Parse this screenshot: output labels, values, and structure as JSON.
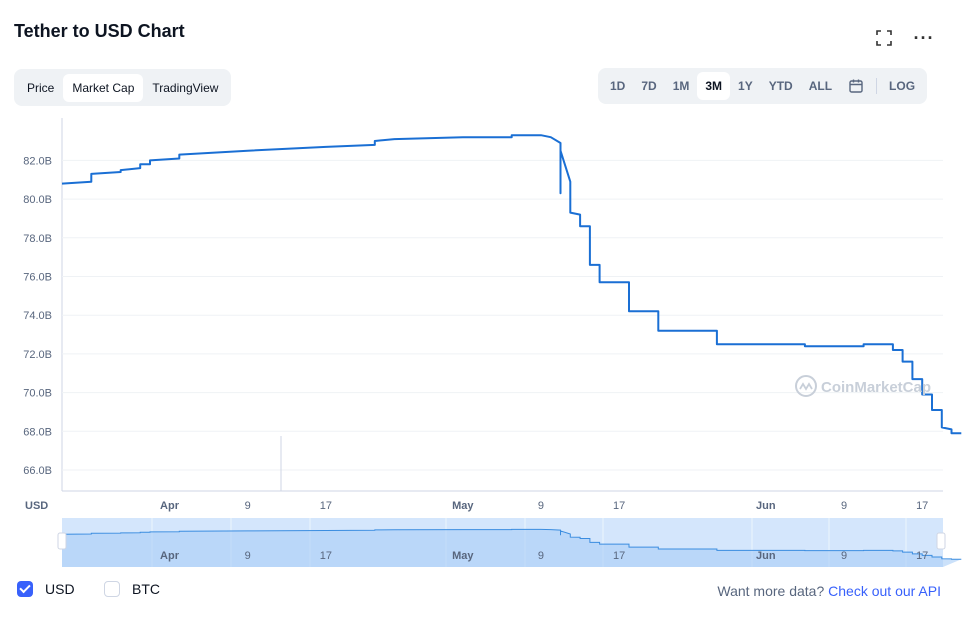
{
  "header": {
    "title": "Tether to USD Chart",
    "fullscreen_icon": "fullscreen-icon",
    "more_icon": "more-horizontal-icon",
    "more_glyph": "···"
  },
  "view_tabs": [
    {
      "label": "Price",
      "active": false
    },
    {
      "label": "Market Cap",
      "active": true
    },
    {
      "label": "TradingView",
      "active": false
    }
  ],
  "range_tabs": [
    {
      "label": "1D",
      "active": false
    },
    {
      "label": "7D",
      "active": false
    },
    {
      "label": "1M",
      "active": false
    },
    {
      "label": "3M",
      "active": true
    },
    {
      "label": "1Y",
      "active": false
    },
    {
      "label": "YTD",
      "active": false
    },
    {
      "label": "ALL",
      "active": false
    }
  ],
  "calendar_icon": "calendar-icon",
  "log_label": "LOG",
  "legend": [
    {
      "label": "USD",
      "checked": true
    },
    {
      "label": "BTC",
      "checked": false
    }
  ],
  "footer": {
    "prefix": "Want more data?",
    "link": "Check out our API"
  },
  "watermark": "CoinMarketCap",
  "colors": {
    "line": "#1a6fd4",
    "accent": "#3861fb",
    "navigator_fill": "#d4e6fc"
  },
  "chart_data": {
    "type": "line",
    "ylabel": "USD",
    "ylim": [
      65,
      84
    ],
    "y_ticks": [
      {
        "value": 66,
        "label": "66.0B"
      },
      {
        "value": 68,
        "label": "68.0B"
      },
      {
        "value": 70,
        "label": "70.0B"
      },
      {
        "value": 72,
        "label": "72.0B"
      },
      {
        "value": 74,
        "label": "74.0B"
      },
      {
        "value": 76,
        "label": "76.0B"
      },
      {
        "value": 78,
        "label": "78.0B"
      },
      {
        "value": 80,
        "label": "80.0B"
      },
      {
        "value": 82,
        "label": "82.0B"
      }
    ],
    "xlim": [
      "2022-03-21",
      "2022-06-20"
    ],
    "x_ticks": [
      {
        "date": "2022-04-01",
        "label": "Apr",
        "bold": true
      },
      {
        "date": "2022-04-09",
        "label": "9",
        "bold": false
      },
      {
        "date": "2022-04-17",
        "label": "17",
        "bold": false
      },
      {
        "date": "2022-05-01",
        "label": "May",
        "bold": true
      },
      {
        "date": "2022-05-09",
        "label": "9",
        "bold": false
      },
      {
        "date": "2022-05-17",
        "label": "17",
        "bold": false
      },
      {
        "date": "2022-06-01",
        "label": "Jun",
        "bold": true
      },
      {
        "date": "2022-06-09",
        "label": "9",
        "bold": false
      },
      {
        "date": "2022-06-17",
        "label": "17",
        "bold": false
      }
    ],
    "grid": true,
    "series": [
      {
        "name": "USD",
        "points": [
          [
            "2022-03-21",
            80.8
          ],
          [
            "2022-03-24",
            80.9
          ],
          [
            "2022-03-24",
            81.3
          ],
          [
            "2022-03-27",
            81.4
          ],
          [
            "2022-03-27",
            81.5
          ],
          [
            "2022-03-29",
            81.6
          ],
          [
            "2022-03-29",
            81.8
          ],
          [
            "2022-03-30",
            81.8
          ],
          [
            "2022-03-30",
            82.0
          ],
          [
            "2022-04-02",
            82.1
          ],
          [
            "2022-04-02",
            82.3
          ],
          [
            "2022-04-09",
            82.5
          ],
          [
            "2022-04-17",
            82.7
          ],
          [
            "2022-04-22",
            82.8
          ],
          [
            "2022-04-22",
            83.0
          ],
          [
            "2022-04-24",
            83.1
          ],
          [
            "2022-05-01",
            83.2
          ],
          [
            "2022-05-06",
            83.2
          ],
          [
            "2022-05-06",
            83.3
          ],
          [
            "2022-05-09",
            83.3
          ],
          [
            "2022-05-10",
            83.2
          ],
          [
            "2022-05-11",
            82.9
          ],
          [
            "2022-05-11",
            80.3
          ],
          [
            "2022-05-11",
            82.5
          ],
          [
            "2022-05-12",
            80.9
          ],
          [
            "2022-05-12",
            79.3
          ],
          [
            "2022-05-13",
            79.2
          ],
          [
            "2022-05-13",
            78.6
          ],
          [
            "2022-05-14",
            78.6
          ],
          [
            "2022-05-14",
            76.6
          ],
          [
            "2022-05-15",
            76.6
          ],
          [
            "2022-05-15",
            75.7
          ],
          [
            "2022-05-18",
            75.7
          ],
          [
            "2022-05-18",
            74.2
          ],
          [
            "2022-05-21",
            74.2
          ],
          [
            "2022-05-21",
            73.2
          ],
          [
            "2022-05-27",
            73.2
          ],
          [
            "2022-05-27",
            72.5
          ],
          [
            "2022-06-05",
            72.5
          ],
          [
            "2022-06-05",
            72.4
          ],
          [
            "2022-06-11",
            72.4
          ],
          [
            "2022-06-11",
            72.5
          ],
          [
            "2022-06-14",
            72.5
          ],
          [
            "2022-06-14",
            72.2
          ],
          [
            "2022-06-15",
            72.2
          ],
          [
            "2022-06-15",
            71.6
          ],
          [
            "2022-06-16",
            71.6
          ],
          [
            "2022-06-16",
            70.7
          ],
          [
            "2022-06-17",
            70.7
          ],
          [
            "2022-06-17",
            69.9
          ],
          [
            "2022-06-18",
            69.9
          ],
          [
            "2022-06-18",
            69.1
          ],
          [
            "2022-06-19",
            69.1
          ],
          [
            "2022-06-19",
            68.2
          ],
          [
            "2022-06-20",
            68.1
          ],
          [
            "2022-06-20",
            67.9
          ],
          [
            "2022-06-21",
            67.9
          ]
        ]
      }
    ]
  }
}
